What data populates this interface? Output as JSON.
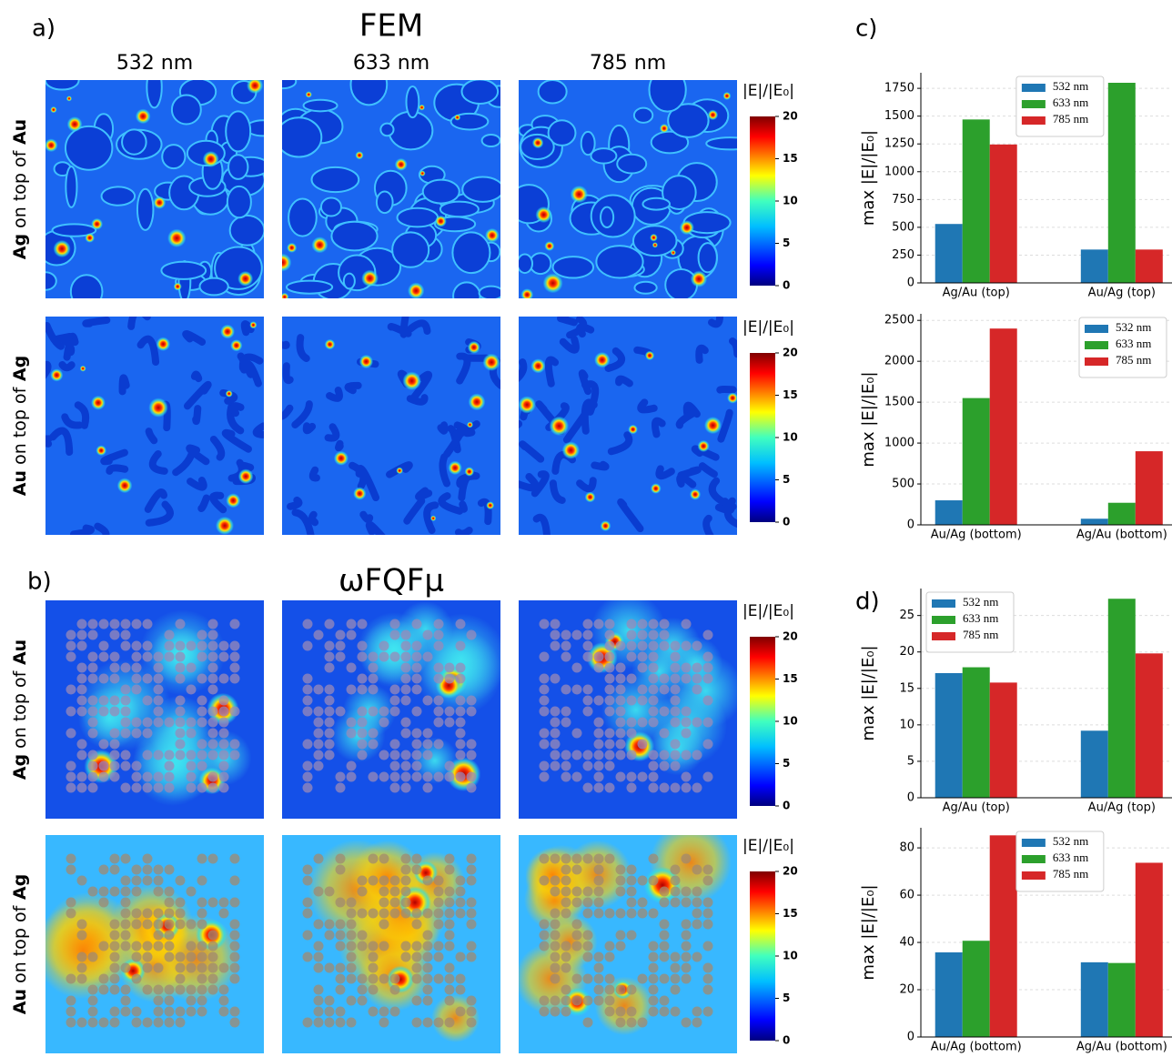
{
  "panel_labels": [
    "a)",
    "b)",
    "c)",
    "d)"
  ],
  "maps": [
    {
      "title": "FEM",
      "columns": [
        "532 nm",
        "633 nm",
        "785 nm"
      ],
      "rows": [
        "Ag on top of Au",
        "Au on top of Ag"
      ],
      "colorbar": {
        "label": "|E|/|E₀|",
        "clim": [
          0,
          20
        ],
        "cticks": [
          0,
          5,
          10,
          15,
          20
        ]
      }
    },
    {
      "title": "ωFQFμ",
      "rows": [
        "Ag on top of Au",
        "Au on top of Ag"
      ],
      "colorbar": {
        "label": "|E|/|E₀|",
        "clim": [
          0,
          20
        ],
        "cticks": [
          0,
          5,
          10,
          15,
          20
        ]
      }
    }
  ],
  "chart_data": [
    {
      "type": "bar",
      "ylabel": "max |E|/|E₀|",
      "categories": [
        "Ag/Au (top)",
        "Au/Ag (top)"
      ],
      "series": [
        {
          "name": "532 nm",
          "color": "#1f77b4",
          "values": [
            530,
            300
          ]
        },
        {
          "name": "633 nm",
          "color": "#2ca02c",
          "values": [
            1470,
            1800
          ]
        },
        {
          "name": "785 nm",
          "color": "#d62728",
          "values": [
            1245,
            300
          ]
        }
      ],
      "ylim": [
        0,
        1890
      ],
      "yticks": [
        0,
        250,
        500,
        750,
        1000,
        1250,
        1500,
        1750
      ],
      "grid": true,
      "legend": "upper center"
    },
    {
      "type": "bar",
      "ylabel": "max |E|/|E₀|",
      "categories": [
        "Au/Ag (bottom)",
        "Ag/Au (bottom)"
      ],
      "series": [
        {
          "name": "532 nm",
          "color": "#1f77b4",
          "values": [
            300,
            75
          ]
        },
        {
          "name": "633 nm",
          "color": "#2ca02c",
          "values": [
            1550,
            270
          ]
        },
        {
          "name": "785 nm",
          "color": "#d62728",
          "values": [
            2400,
            900
          ]
        }
      ],
      "ylim": [
        0,
        2580
      ],
      "yticks": [
        0,
        500,
        1000,
        1500,
        2000,
        2500
      ],
      "grid": true,
      "legend": "upper right"
    },
    {
      "type": "bar",
      "ylabel": "max |E|/|E₀|",
      "categories": [
        "Ag/Au (top)",
        "Au/Ag (top)"
      ],
      "series": [
        {
          "name": "532 nm",
          "color": "#1f77b4",
          "values": [
            17.1,
            9.2
          ]
        },
        {
          "name": "633 nm",
          "color": "#2ca02c",
          "values": [
            17.9,
            27.3
          ]
        },
        {
          "name": "785 nm",
          "color": "#d62728",
          "values": [
            15.8,
            19.8
          ]
        }
      ],
      "ylim": [
        0,
        28.7
      ],
      "yticks": [
        0,
        5,
        10,
        15,
        20,
        25
      ],
      "grid": true,
      "legend": "upper left"
    },
    {
      "type": "bar",
      "ylabel": "max |E|/|E₀|",
      "categories": [
        "Au/Ag (bottom)",
        "Ag/Au (bottom)"
      ],
      "series": [
        {
          "name": "532 nm",
          "color": "#1f77b4",
          "values": [
            35.8,
            31.6
          ]
        },
        {
          "name": "633 nm",
          "color": "#2ca02c",
          "values": [
            40.7,
            31.3
          ]
        },
        {
          "name": "785 nm",
          "color": "#d62728",
          "values": [
            85.3,
            73.7
          ]
        }
      ],
      "ylim": [
        0,
        88.5
      ],
      "yticks": [
        0,
        20,
        40,
        60,
        80
      ],
      "grid": true,
      "legend": "upper center"
    }
  ]
}
